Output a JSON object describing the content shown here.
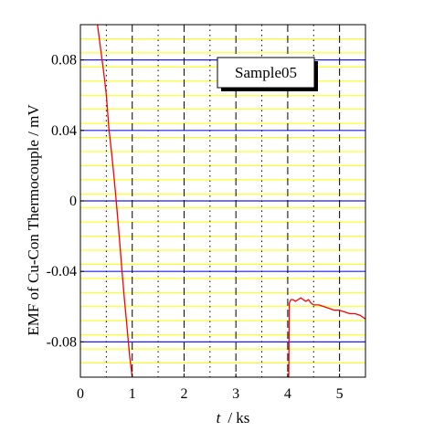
{
  "chart_data": {
    "type": "line",
    "title": "",
    "xlabel": "t / ks",
    "xlabel_var": "t",
    "xlabel_unit": "/  ks",
    "ylabel": "EMF of Cu-Con Thermocouple / mV",
    "xlim": [
      0,
      5.5
    ],
    "ylim": [
      -0.1,
      0.1
    ],
    "x_ticks": [
      0,
      1,
      2,
      3,
      4,
      5
    ],
    "x_tick_labels": [
      "0",
      "1",
      "2",
      "3",
      "4",
      "5"
    ],
    "y_ticks": [
      0.08,
      0.04,
      0,
      -0.04,
      -0.08
    ],
    "y_tick_labels": [
      "0.08",
      "0.04",
      "0",
      "-0.04",
      "-0.08"
    ],
    "grid": true,
    "legend": {
      "label": "Sample05",
      "placement": "top-right"
    },
    "series": [
      {
        "name": "Sample05",
        "color": "#ff0000",
        "segments": [
          {
            "x": [
              0.33,
              0.4,
              0.45,
              0.5,
              0.55,
              0.6,
              0.65,
              0.7,
              0.75,
              0.8,
              0.85,
              0.9,
              0.95,
              1.0
            ],
            "y": [
              0.1,
              0.084,
              0.073,
              0.06,
              0.041,
              0.028,
              0.013,
              -0.003,
              -0.02,
              -0.039,
              -0.056,
              -0.072,
              -0.088,
              -0.1
            ]
          },
          {
            "x": [
              4.02,
              4.025,
              4.03,
              4.06,
              4.1,
              4.15,
              4.2,
              4.25,
              4.3,
              4.35,
              4.4,
              4.45,
              4.5,
              4.6,
              4.7,
              4.8,
              4.9,
              5.0,
              5.1,
              5.2,
              5.3,
              5.4,
              5.5
            ],
            "y": [
              -0.1,
              -0.08,
              -0.058,
              -0.056,
              -0.056,
              -0.057,
              -0.056,
              -0.055,
              -0.056,
              -0.057,
              -0.056,
              -0.058,
              -0.059,
              -0.059,
              -0.06,
              -0.061,
              -0.062,
              -0.062,
              -0.063,
              -0.064,
              -0.064,
              -0.065,
              -0.067
            ]
          }
        ]
      }
    ]
  },
  "colors": {
    "plot_background": "#ffffff",
    "minor_grid": "#ffff00",
    "major_grid": "#1a1aff",
    "vertical_grid": "#000000",
    "line": "#ff0000"
  }
}
